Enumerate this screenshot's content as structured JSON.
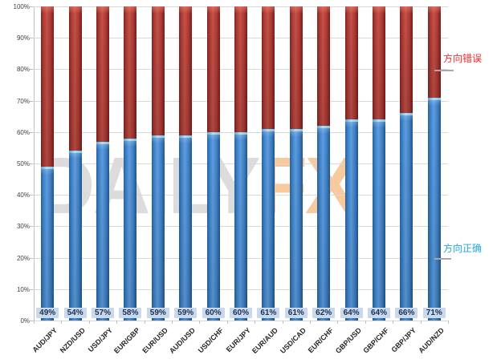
{
  "chart_data": {
    "type": "bar",
    "stacked": true,
    "title": "",
    "xlabel": "",
    "ylabel": "",
    "ylim": [
      0,
      100
    ],
    "grid": true,
    "y_ticks": [
      "0%",
      "10%",
      "20%",
      "30%",
      "40%",
      "50%",
      "60%",
      "70%",
      "80%",
      "90%",
      "100%"
    ],
    "categories": [
      "AUD/JPY",
      "NZD/USD",
      "USD/JPY",
      "EUR/GBP",
      "EUR/USD",
      "AUD/USD",
      "USD/CHF",
      "EUR/JPY",
      "EUR/AUD",
      "USD/CAD",
      "EUR/CHF",
      "GBP/USD",
      "GBP/CHF",
      "GBP/JPY",
      "AUD/NZD"
    ],
    "series": [
      {
        "name": "方向正确",
        "color": "#3b7fc4",
        "values": [
          49,
          54,
          57,
          58,
          59,
          59,
          60,
          60,
          61,
          61,
          62,
          64,
          64,
          66,
          71
        ]
      },
      {
        "name": "方向错误",
        "color": "#b03734",
        "values": [
          51,
          46,
          43,
          42,
          41,
          41,
          40,
          40,
          39,
          39,
          38,
          36,
          36,
          34,
          29
        ]
      }
    ],
    "data_labels": [
      "49%",
      "54%",
      "57%",
      "58%",
      "59%",
      "59%",
      "60%",
      "60%",
      "61%",
      "61%",
      "62%",
      "64%",
      "64%",
      "66%",
      "71%"
    ],
    "annotations": [
      {
        "text": "方向错误",
        "color": "#ff2a2a"
      },
      {
        "text": "方向正确",
        "color": "#22a5e3"
      }
    ],
    "legend_position": "right-annotations"
  },
  "watermark": {
    "part1": "DAILY",
    "part2": "FX",
    "color1": "#dcdcdc",
    "color2": "#f9c99e"
  }
}
